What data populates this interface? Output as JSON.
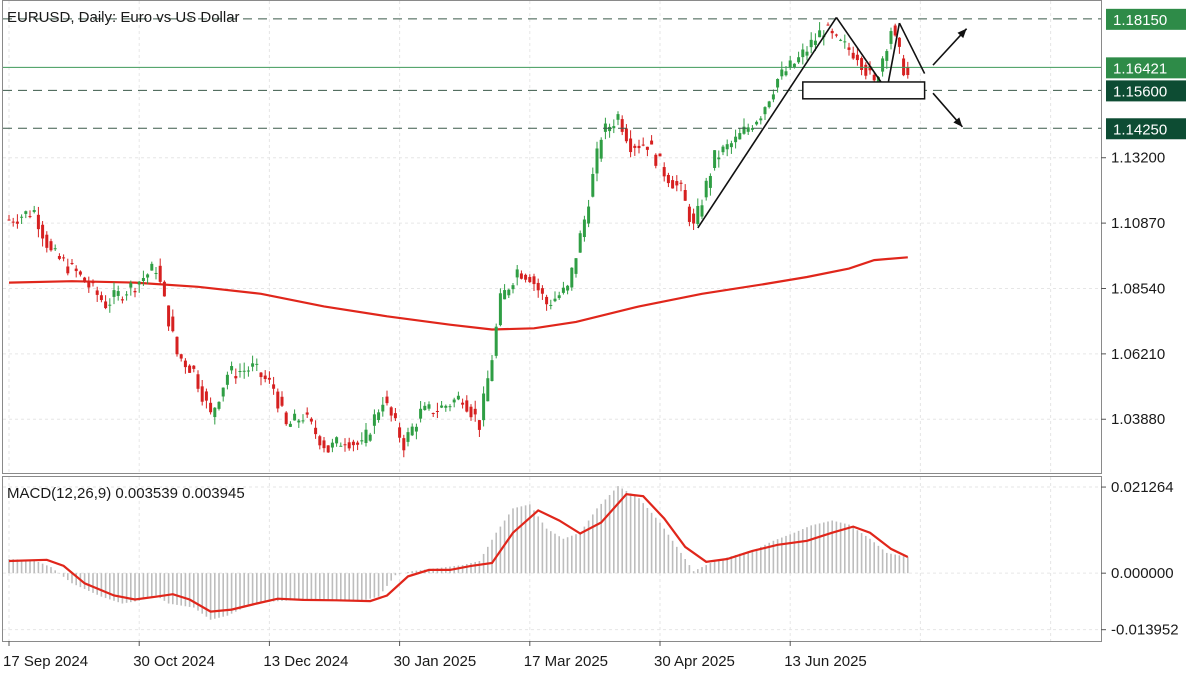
{
  "chart_data": {
    "type": "candlestick",
    "symbol_label": "EURUSD, Daily:  Euro vs US Dollar",
    "price_axis": {
      "min": 1.02,
      "max": 1.1875,
      "ticks": [
        "1.03880",
        "1.06210",
        "1.08540",
        "1.10870",
        "1.13200"
      ],
      "grid": true
    },
    "x_axis": {
      "labels": [
        "17 Sep 2024",
        "30 Oct 2024",
        "13 Dec 2024",
        "30 Jan 2025",
        "17 Mar 2025",
        "30 Apr 2025",
        "13 Jun 2025"
      ],
      "label_bar_index": [
        0,
        31,
        62,
        93,
        124,
        155,
        186
      ],
      "bar_count": 215
    },
    "price_waypoints": [
      [
        0,
        1.11
      ],
      [
        6,
        1.113
      ],
      [
        10,
        1.098
      ],
      [
        16,
        1.091
      ],
      [
        23,
        1.08
      ],
      [
        30,
        1.087
      ],
      [
        35,
        1.093
      ],
      [
        40,
        1.062
      ],
      [
        44,
        1.056
      ],
      [
        48,
        1.04
      ],
      [
        52,
        1.055
      ],
      [
        58,
        1.057
      ],
      [
        63,
        1.05
      ],
      [
        66,
        1.036
      ],
      [
        70,
        1.04
      ],
      [
        76,
        1.028
      ],
      [
        80,
        1.032
      ],
      [
        84,
        1.029
      ],
      [
        89,
        1.046
      ],
      [
        94,
        1.03
      ],
      [
        98,
        1.041
      ],
      [
        103,
        1.043
      ],
      [
        108,
        1.047
      ],
      [
        112,
        1.037
      ],
      [
        115,
        1.061
      ],
      [
        117,
        1.081
      ],
      [
        121,
        1.092
      ],
      [
        124,
        1.09
      ],
      [
        128,
        1.08
      ],
      [
        133,
        1.085
      ],
      [
        137,
        1.11
      ],
      [
        141,
        1.14
      ],
      [
        145,
        1.147
      ],
      [
        148,
        1.137
      ],
      [
        152,
        1.137
      ],
      [
        156,
        1.127
      ],
      [
        160,
        1.12
      ],
      [
        163,
        1.107
      ],
      [
        168,
        1.132
      ],
      [
        173,
        1.138
      ],
      [
        179,
        1.148
      ],
      [
        183,
        1.16
      ],
      [
        188,
        1.167
      ],
      [
        194,
        1.178
      ],
      [
        197,
        1.173
      ],
      [
        202,
        1.169
      ],
      [
        206,
        1.158
      ],
      [
        210,
        1.178
      ],
      [
        213,
        1.164
      ],
      [
        214,
        1.161
      ]
    ],
    "moving_average": {
      "color": "#e0261b",
      "values": [
        [
          0,
          1.0875
        ],
        [
          15,
          1.088
        ],
        [
          30,
          1.0875
        ],
        [
          45,
          1.086
        ],
        [
          60,
          1.0835
        ],
        [
          75,
          1.079
        ],
        [
          90,
          1.0755
        ],
        [
          105,
          1.0725
        ],
        [
          115,
          1.0708
        ],
        [
          125,
          1.0712
        ],
        [
          135,
          1.0735
        ],
        [
          150,
          1.079
        ],
        [
          165,
          1.0835
        ],
        [
          180,
          1.087
        ],
        [
          190,
          1.0895
        ],
        [
          200,
          1.0925
        ],
        [
          206,
          1.0955
        ],
        [
          214,
          1.0965
        ]
      ]
    },
    "horizontal_levels": [
      {
        "value": 1.1815,
        "label": "1.18150",
        "style": "dashed",
        "tag_color": "#2e8b48"
      },
      {
        "value": 1.16421,
        "label": "1.16421",
        "style": "solid",
        "tag_color": "#2e8b48"
      },
      {
        "value": 1.156,
        "label": "1.15600",
        "style": "dashed",
        "tag_color": "#0d4c33"
      },
      {
        "value": 1.1425,
        "label": "1.14250",
        "style": "dashed",
        "tag_color": "#0d4c33"
      }
    ],
    "pattern_lines": [
      [
        [
          164,
          1.107
        ],
        [
          197,
          1.182
        ]
      ],
      [
        [
          197,
          1.182
        ],
        [
          209,
          1.156
        ]
      ],
      [
        [
          209,
          1.156
        ],
        [
          212,
          1.18
        ]
      ],
      [
        [
          212,
          1.18
        ],
        [
          218,
          1.162
        ]
      ]
    ],
    "box": {
      "x1": 189,
      "x2": 218,
      "y1": 1.159,
      "y2": 1.153
    },
    "arrows": [
      {
        "from": [
          220,
          1.165
        ],
        "to": [
          228,
          1.178
        ]
      },
      {
        "from": [
          220,
          1.155
        ],
        "to": [
          227,
          1.143
        ]
      }
    ],
    "macd": {
      "label": "MACD(12,26,9) 0.003539 0.003945",
      "ticks": [
        "0.021264",
        "0.000000",
        "-0.013952"
      ],
      "range": [
        -0.0165,
        0.0235
      ],
      "histogram_waypoints": [
        [
          0,
          0.0035
        ],
        [
          6,
          0.0032
        ],
        [
          10,
          0.0015
        ],
        [
          15,
          -0.0025
        ],
        [
          22,
          -0.0058
        ],
        [
          27,
          -0.0075
        ],
        [
          31,
          -0.0068
        ],
        [
          35,
          -0.0055
        ],
        [
          38,
          -0.0075
        ],
        [
          44,
          -0.0085
        ],
        [
          48,
          -0.0115
        ],
        [
          52,
          -0.0105
        ],
        [
          58,
          -0.0075
        ],
        [
          63,
          -0.007
        ],
        [
          70,
          -0.0065
        ],
        [
          78,
          -0.0066
        ],
        [
          84,
          -0.0068
        ],
        [
          88,
          -0.0058
        ],
        [
          92,
          -0.0005
        ],
        [
          96,
          0.0005
        ],
        [
          100,
          0.001
        ],
        [
          104,
          0.0015
        ],
        [
          108,
          0.002
        ],
        [
          112,
          0.003
        ],
        [
          116,
          0.01
        ],
        [
          120,
          0.016
        ],
        [
          124,
          0.017
        ],
        [
          128,
          0.011
        ],
        [
          132,
          0.0085
        ],
        [
          136,
          0.01
        ],
        [
          140,
          0.016
        ],
        [
          145,
          0.0215
        ],
        [
          150,
          0.0185
        ],
        [
          155,
          0.0125
        ],
        [
          160,
          0.005
        ],
        [
          163,
          0.0005
        ],
        [
          168,
          0.003
        ],
        [
          173,
          0.0045
        ],
        [
          178,
          0.006
        ],
        [
          182,
          0.008
        ],
        [
          187,
          0.01
        ],
        [
          191,
          0.0118
        ],
        [
          196,
          0.013
        ],
        [
          200,
          0.012
        ],
        [
          205,
          0.0085
        ],
        [
          209,
          0.005
        ],
        [
          214,
          0.004
        ]
      ],
      "signal": {
        "color": "#e0261b",
        "values": [
          [
            0,
            0.003
          ],
          [
            9,
            0.0033
          ],
          [
            13,
            0.0018
          ],
          [
            18,
            -0.0025
          ],
          [
            25,
            -0.0055
          ],
          [
            30,
            -0.0065
          ],
          [
            35,
            -0.0058
          ],
          [
            39,
            -0.0052
          ],
          [
            43,
            -0.0065
          ],
          [
            48,
            -0.0095
          ],
          [
            53,
            -0.009
          ],
          [
            59,
            -0.0075
          ],
          [
            64,
            -0.0063
          ],
          [
            70,
            -0.0066
          ],
          [
            78,
            -0.0067
          ],
          [
            86,
            -0.0069
          ],
          [
            90,
            -0.0055
          ],
          [
            95,
            -0.0008
          ],
          [
            100,
            0.0008
          ],
          [
            105,
            0.0008
          ],
          [
            110,
            0.0018
          ],
          [
            115,
            0.0025
          ],
          [
            120,
            0.01
          ],
          [
            126,
            0.0155
          ],
          [
            131,
            0.013
          ],
          [
            136,
            0.0098
          ],
          [
            141,
            0.0125
          ],
          [
            147,
            0.0195
          ],
          [
            151,
            0.019
          ],
          [
            156,
            0.0135
          ],
          [
            161,
            0.0065
          ],
          [
            166,
            0.0028
          ],
          [
            171,
            0.0035
          ],
          [
            177,
            0.0055
          ],
          [
            183,
            0.007
          ],
          [
            190,
            0.008
          ],
          [
            196,
            0.01
          ],
          [
            201,
            0.0115
          ],
          [
            205,
            0.01
          ],
          [
            210,
            0.006
          ],
          [
            214,
            0.004
          ]
        ]
      }
    }
  }
}
